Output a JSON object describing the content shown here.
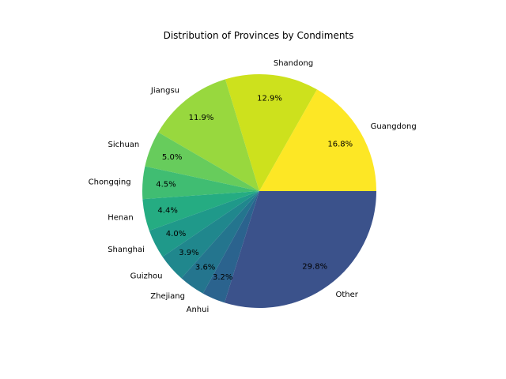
{
  "chart_data": {
    "type": "pie",
    "title": "Distribution of Provinces by Condiments",
    "start_angle_deg": 0,
    "direction": "counterclockwise",
    "slices": [
      {
        "label": "Guangdong",
        "value": 16.8,
        "pct_label": "16.8%",
        "color": "#fde725"
      },
      {
        "label": "Shandong",
        "value": 12.9,
        "pct_label": "12.9%",
        "color": "#cde11d"
      },
      {
        "label": "Jiangsu",
        "value": 11.9,
        "pct_label": "11.9%",
        "color": "#98d83e"
      },
      {
        "label": "Sichuan",
        "value": 5.0,
        "pct_label": "5.0%",
        "color": "#67cc5c"
      },
      {
        "label": "Chongqing",
        "value": 4.5,
        "pct_label": "4.5%",
        "color": "#40bd72"
      },
      {
        "label": "Henan",
        "value": 4.4,
        "pct_label": "4.4%",
        "color": "#25ac82"
      },
      {
        "label": "Shanghai",
        "value": 4.0,
        "pct_label": "4.0%",
        "color": "#1f998a"
      },
      {
        "label": "Guizhou",
        "value": 3.9,
        "pct_label": "3.9%",
        "color": "#20878d"
      },
      {
        "label": "Zhejiang",
        "value": 3.6,
        "pct_label": "3.6%",
        "color": "#24758e"
      },
      {
        "label": "Anhui",
        "value": 3.2,
        "pct_label": "3.2%",
        "color": "#2b638e"
      },
      {
        "label": "Other",
        "value": 29.8,
        "pct_label": "29.8%",
        "color": "#3b528b"
      }
    ]
  }
}
